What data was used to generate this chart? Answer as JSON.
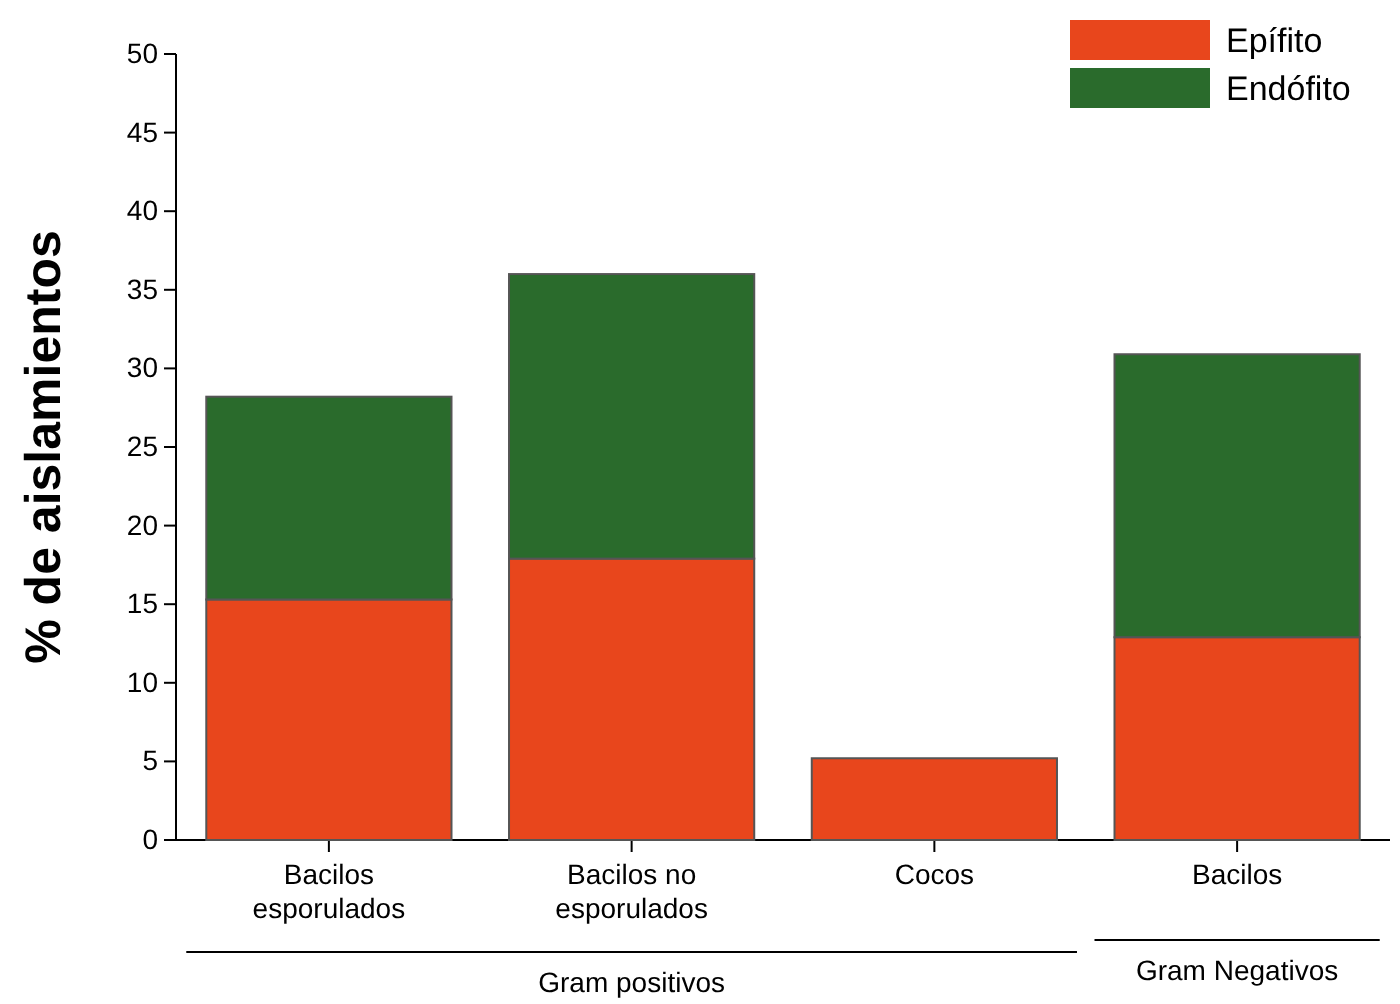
{
  "chart_data": {
    "type": "bar",
    "stacked": true,
    "ylabel": "% de aislamientos",
    "categories": [
      "Bacilos\nesporulados",
      "Bacilos no\nesporulados",
      "Cocos",
      "Bacilos"
    ],
    "series": [
      {
        "name": "Epífito",
        "color": "#e8461c",
        "values": [
          15.3,
          17.9,
          5.2,
          12.9
        ]
      },
      {
        "name": "Endófito",
        "color": "#2a6b2c",
        "values": [
          12.9,
          18.1,
          null,
          18
        ]
      }
    ],
    "ylim": [
      0,
      50
    ],
    "yticks": [
      0,
      5,
      10,
      15,
      20,
      25,
      30,
      35,
      40,
      45,
      50
    ],
    "legend": "top right",
    "grid": false,
    "annotations": [
      "Gram positivos",
      "Gram Negativos"
    ]
  }
}
